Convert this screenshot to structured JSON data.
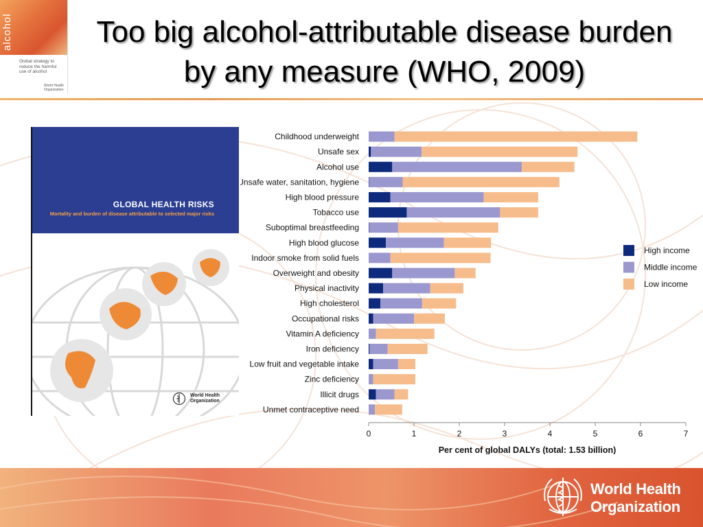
{
  "slide": {
    "title": "Too big alcohol-attributable disease burden by any measure (WHO, 2009)"
  },
  "thumbnail": {
    "word": "alcohol",
    "caption": "Global strategy to reduce the harmful use of alcohol",
    "logo_text": "World Health Organization"
  },
  "cover": {
    "title": "GLOBAL HEALTH RISKS",
    "subtitle": "Mortality and burden of disease attributable to selected major risks",
    "logo_line1": "World Health",
    "logo_line2": "Organization"
  },
  "footer": {
    "org_line1": "World Health",
    "org_line2": "Organization"
  },
  "colors": {
    "high": "#0e2a7c",
    "middle": "#9b98cf",
    "low": "#f7bc8b",
    "cover_blue": "#2b3e92"
  },
  "chart_data": {
    "type": "bar",
    "orientation": "horizontal",
    "stacked": true,
    "xlabel": "Per cent of global DALYs (total: 1.53 billion)",
    "xlim": [
      0,
      7
    ],
    "xticks": [
      0,
      1,
      2,
      3,
      4,
      5,
      6,
      7
    ],
    "legend_position": "right",
    "categories": [
      "Childhood underweight",
      "Unsafe sex",
      "Alcohol use",
      "Unsafe water, sanitation, hygiene",
      "High blood pressure",
      "Tobacco use",
      "Suboptimal breastfeeding",
      "High blood glucose",
      "Indoor smoke from solid fuels",
      "Overweight and obesity",
      "Physical inactivity",
      "High cholesterol",
      "Occupational risks",
      "Vitamin A deficiency",
      "Iron deficiency",
      "Low fruit and vegetable intake",
      "Zinc deficiency",
      "Illicit drugs",
      "Unmet contraceptive need"
    ],
    "series": [
      {
        "name": "High income",
        "values": [
          0.0,
          0.05,
          0.52,
          0.01,
          0.48,
          0.84,
          0.01,
          0.38,
          0.0,
          0.52,
          0.32,
          0.26,
          0.1,
          0.0,
          0.02,
          0.1,
          0.0,
          0.16,
          0.0
        ]
      },
      {
        "name": "Middle income",
        "values": [
          0.57,
          1.12,
          2.86,
          0.74,
          2.06,
          2.06,
          0.64,
          1.28,
          0.48,
          1.38,
          1.04,
          0.92,
          0.9,
          0.16,
          0.4,
          0.55,
          0.1,
          0.41,
          0.14
        ]
      },
      {
        "name": "Low income",
        "values": [
          5.36,
          3.44,
          1.16,
          3.46,
          1.2,
          0.84,
          2.21,
          1.04,
          2.21,
          0.46,
          0.73,
          0.75,
          0.68,
          1.29,
          0.88,
          0.38,
          0.93,
          0.3,
          0.6
        ]
      }
    ]
  }
}
